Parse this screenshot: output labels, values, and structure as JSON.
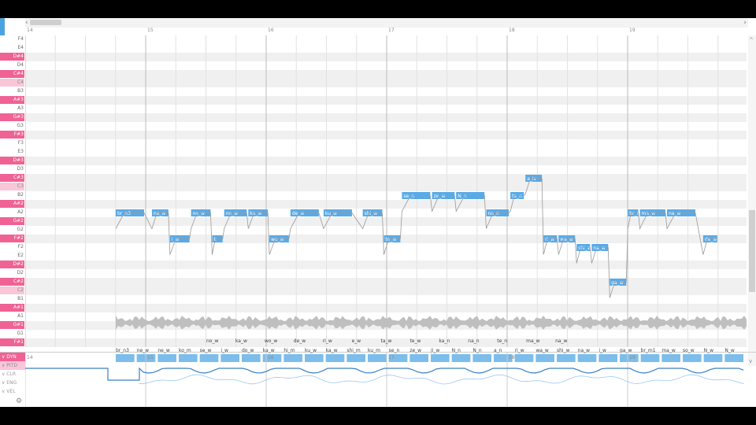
{
  "colors": {
    "accent": "#4aa3df",
    "note": "#5aaae6",
    "black_key": "#f06294",
    "light_key": "#f9c6d8"
  },
  "ruler": {
    "measures": [
      "14",
      "15",
      "16",
      "17",
      "18",
      "19"
    ]
  },
  "scroll": {
    "left_arrow": "‹",
    "right_arrow": "›",
    "up_arrow": "^",
    "down_arrow": "v"
  },
  "piano_keys": [
    {
      "name": "F4",
      "type": "white"
    },
    {
      "name": "E4",
      "type": "white"
    },
    {
      "name": "D#4",
      "type": "black"
    },
    {
      "name": "D4",
      "type": "white"
    },
    {
      "name": "C#4",
      "type": "black"
    },
    {
      "name": "C4",
      "type": "light"
    },
    {
      "name": "B3",
      "type": "white"
    },
    {
      "name": "A#3",
      "type": "black"
    },
    {
      "name": "A3",
      "type": "white"
    },
    {
      "name": "G#3",
      "type": "black"
    },
    {
      "name": "G3",
      "type": "white"
    },
    {
      "name": "F#3",
      "type": "black"
    },
    {
      "name": "F3",
      "type": "white"
    },
    {
      "name": "E3",
      "type": "white"
    },
    {
      "name": "D#3",
      "type": "black"
    },
    {
      "name": "D3",
      "type": "white"
    },
    {
      "name": "C#3",
      "type": "black"
    },
    {
      "name": "C3",
      "type": "light"
    },
    {
      "name": "B2",
      "type": "white"
    },
    {
      "name": "A#2",
      "type": "black"
    },
    {
      "name": "A2",
      "type": "white"
    },
    {
      "name": "G#2",
      "type": "black"
    },
    {
      "name": "G2",
      "type": "white"
    },
    {
      "name": "F#2",
      "type": "black"
    },
    {
      "name": "F2",
      "type": "white"
    },
    {
      "name": "E2",
      "type": "white"
    },
    {
      "name": "D#2",
      "type": "black"
    },
    {
      "name": "D2",
      "type": "white"
    },
    {
      "name": "C#2",
      "type": "black"
    },
    {
      "name": "C2",
      "type": "light"
    },
    {
      "name": "B1",
      "type": "white"
    },
    {
      "name": "A#1",
      "type": "black"
    },
    {
      "name": "A1",
      "type": "white"
    },
    {
      "name": "G#1",
      "type": "black"
    },
    {
      "name": "G1",
      "type": "white"
    },
    {
      "name": "F#1",
      "type": "black"
    }
  ],
  "notes": [
    {
      "lyric": "br_n3",
      "pitch": "A2",
      "beat": 0
    },
    {
      "lyric": "ne_w",
      "pitch": "A2",
      "beat": 1.2
    },
    {
      "lyric": "i_w",
      "pitch": "F#2",
      "beat": 1.8
    },
    {
      "lyric": "ne_w",
      "pitch": "A2",
      "beat": 2.5
    },
    {
      "lyric": "k",
      "pitch": "F#2",
      "beat": 3.2
    },
    {
      "lyric": "no_w",
      "pitch": "A2",
      "beat": 3.6
    },
    {
      "lyric": "ka_w",
      "pitch": "A2",
      "beat": 4.4
    },
    {
      "lyric": "wo_w",
      "pitch": "F#2",
      "beat": 5.1
    },
    {
      "lyric": "de_w",
      "pitch": "A2",
      "beat": 5.8
    },
    {
      "lyric": "ku_w",
      "pitch": "A2",
      "beat": 6.9
    },
    {
      "lyric": "shi_w",
      "pitch": "A2",
      "beat": 8.2
    },
    {
      "lyric": "te_w",
      "pitch": "F#2",
      "beat": 8.9
    },
    {
      "lyric": "se_n",
      "pitch": "B2",
      "beat": 9.5
    },
    {
      "lyric": "ze_w",
      "pitch": "B2",
      "beat": 10.5
    },
    {
      "lyric": "N_n",
      "pitch": "B2",
      "beat": 11.3
    },
    {
      "lyric": "na_n",
      "pitch": "A2",
      "beat": 12.3
    },
    {
      "lyric": "te_n",
      "pitch": "B2",
      "beat": 13.1
    },
    {
      "lyric": "a_iv",
      "pitch": "C#3",
      "beat": 13.6
    },
    {
      "lyric": "ri_w",
      "pitch": "F#2",
      "beat": 14.2
    },
    {
      "lyric": "wa_w",
      "pitch": "F#2",
      "beat": 14.7
    },
    {
      "lyric": "shi_w",
      "pitch": "F2",
      "beat": 15.3
    },
    {
      "lyric": "na_w",
      "pitch": "F2",
      "beat": 15.8
    },
    {
      "lyric": "ga_w",
      "pitch": "C#2",
      "beat": 16.4
    },
    {
      "lyric": "br_m1",
      "pitch": "A2",
      "beat": 17.0
    },
    {
      "lyric": "ma_w",
      "pitch": "A2",
      "beat": 17.4
    },
    {
      "lyric": "na_w",
      "pitch": "A2",
      "beat": 18.3
    },
    {
      "lyric": "de_w",
      "pitch": "F#2",
      "beat": 19.5
    }
  ],
  "lyric_row_top": [
    "no_w",
    "ka_w",
    "wo_w",
    "de_w",
    "ri_w",
    "e_w",
    "ta_w",
    "te_w",
    "ka_n",
    "na_n",
    "te_n",
    "ma_w",
    "na_w"
  ],
  "lyric_row_bottom": [
    "br_n3",
    "ne_w",
    "ne_w",
    "ko_m",
    "se_w",
    "i_w",
    "do_w",
    "ka_w",
    "hi_m",
    "ku_w",
    "ka_w",
    "shi_m",
    "ku_m",
    "se_n",
    "ze_w",
    "ji_w",
    "N_n",
    "N_n",
    "a_n",
    "ri_w",
    "wa_w",
    "shi_w",
    "na_w",
    "i_w",
    "ga_w",
    "br_m1",
    "ma_w",
    "so_w",
    "N_w",
    "N_w"
  ],
  "params": {
    "labels": [
      {
        "name": "DYN",
        "state": "active"
      },
      {
        "name": "PITD",
        "state": "sub"
      },
      {
        "name": "CLR",
        "state": "normal"
      },
      {
        "name": "ENG",
        "state": "normal"
      },
      {
        "name": "VEL",
        "state": "normal"
      }
    ]
  },
  "gear_glyph": "⚙"
}
